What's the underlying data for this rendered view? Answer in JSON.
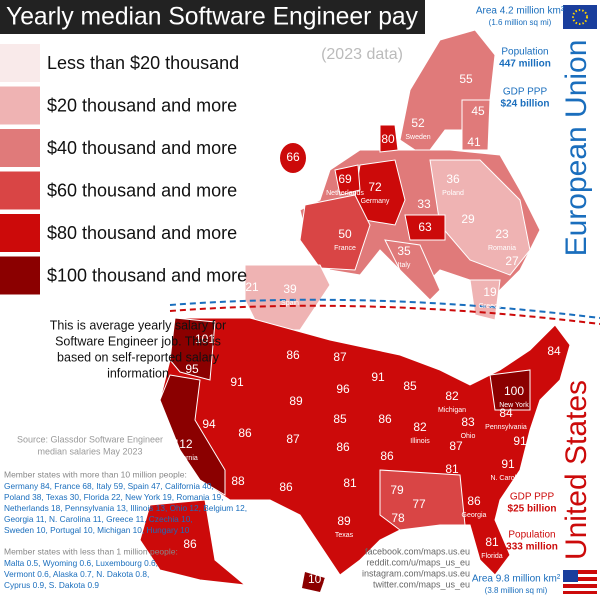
{
  "header": {
    "title": "Yearly median Software Engineer pay",
    "subtitle": "(2023 data)"
  },
  "legend": [
    {
      "label": "Less than $20 thousand",
      "color": "#f9eaea"
    },
    {
      "label": "$20 thousand and more",
      "color": "#efb3b3"
    },
    {
      "label": "$40 thousand and more",
      "color": "#e07a7a"
    },
    {
      "label": "$60 thousand and more",
      "color": "#d94545"
    },
    {
      "label": "$80 thousand and more",
      "color": "#cc0a0a"
    },
    {
      "label": "$100 thousand and more",
      "color": "#8b0000"
    }
  ],
  "description": [
    "This is average yearly salary for",
    "Software Engineer job. This is",
    "based on self-reported salary",
    "information"
  ],
  "source": [
    "Source: Glassdor Software Engineer",
    "median salaries May 2023"
  ],
  "large_states": {
    "heading": "Member states with more than 10 million people:",
    "lines": [
      "Germany 84, France 68, Italy 59, Spain 47, California 40,",
      "Poland 38, Texas 30, Florida 22, New York 19, Romania 19,",
      "Netherlands 18, Pennsylvania 13, Illinois 13, Ohio 12, Belgium 12,",
      "Georgia 11, N. Carolina 11, Greece 11, Czechia 10,",
      "Sweden 10, Portugal 10, Michigan 10, Hungary 10"
    ]
  },
  "small_states": {
    "heading": "Member states with less than 1 million people:",
    "lines": [
      "Malta 0.5, Wyoming 0.6, Luxembourg 0.6,",
      "Vermont 0.6, Alaska 0.7, N. Dakota 0.8,",
      "Cyprus 0.9, S. Dakota 0.9"
    ]
  },
  "eu": {
    "name": "European Union",
    "area": "Area 4.2 million km²",
    "area_alt": "(1.6 million sq mi)",
    "population_label": "Population",
    "population": "447 million",
    "gdp_label": "GDP PPP",
    "gdp": "$24 billion"
  },
  "us": {
    "name": "United States",
    "area": "Area 9.8 million km²",
    "area_alt": "(3.8 million sq mi)",
    "population_label": "Population",
    "population": "333 million",
    "gdp_label": "GDP PPP",
    "gdp": "$25 billion"
  },
  "social": [
    "facebook.com/maps.us.eu",
    "reddit.com/u/maps_us_eu",
    "instagram.com/maps.us.eu",
    "twitter.com/maps_us_eu"
  ],
  "map": {
    "europe": [
      {
        "value": 66
      },
      {
        "value": 52,
        "name": "Sweden"
      },
      {
        "value": 55
      },
      {
        "value": 45
      },
      {
        "value": 41
      },
      {
        "value": 80
      },
      {
        "value": 69,
        "name": "Netherlands"
      },
      {
        "value": 72,
        "name": "Germany"
      },
      {
        "value": 50,
        "name": "France"
      },
      {
        "value": 39,
        "name": "Spain"
      },
      {
        "value": 21
      },
      {
        "value": 35,
        "name": "Italy"
      },
      {
        "value": 36,
        "name": "Poland"
      },
      {
        "value": 23,
        "name": "Romania"
      },
      {
        "value": 27
      },
      {
        "value": 19,
        "name": "Greece"
      },
      {
        "value": 63
      },
      {
        "value": 29
      },
      {
        "value": 33
      }
    ],
    "us": [
      {
        "value": 101
      },
      {
        "value": 95
      },
      {
        "value": 91
      },
      {
        "value": 86
      },
      {
        "value": 87
      },
      {
        "value": 96
      },
      {
        "value": 89
      },
      {
        "value": 85
      },
      {
        "value": 94
      },
      {
        "value": 86
      },
      {
        "value": 87
      },
      {
        "value": 86
      },
      {
        "value": 88
      },
      {
        "value": 86
      },
      {
        "value": 89,
        "name": "Texas"
      },
      {
        "value": 81
      },
      {
        "value": 91
      },
      {
        "value": 86
      },
      {
        "value": 85
      },
      {
        "value": 82,
        "name": "Michigan"
      },
      {
        "value": 82,
        "name": "Illinois"
      },
      {
        "value": 86
      },
      {
        "value": 79
      },
      {
        "value": 78
      },
      {
        "value": 77
      },
      {
        "value": 86,
        "name": "Georgia"
      },
      {
        "value": 81,
        "name": "Florida"
      },
      {
        "value": 91,
        "name": "N. Carolina"
      },
      {
        "value": 81
      },
      {
        "value": 87
      },
      {
        "value": 83,
        "name": "Ohio"
      },
      {
        "value": 84,
        "name": "Pennsylvania"
      },
      {
        "value": 100,
        "name": "New York"
      },
      {
        "value": 84
      },
      {
        "value": 91
      },
      {
        "value": 112,
        "name": "California"
      },
      {
        "value": 86
      },
      {
        "value": 107
      }
    ]
  }
}
